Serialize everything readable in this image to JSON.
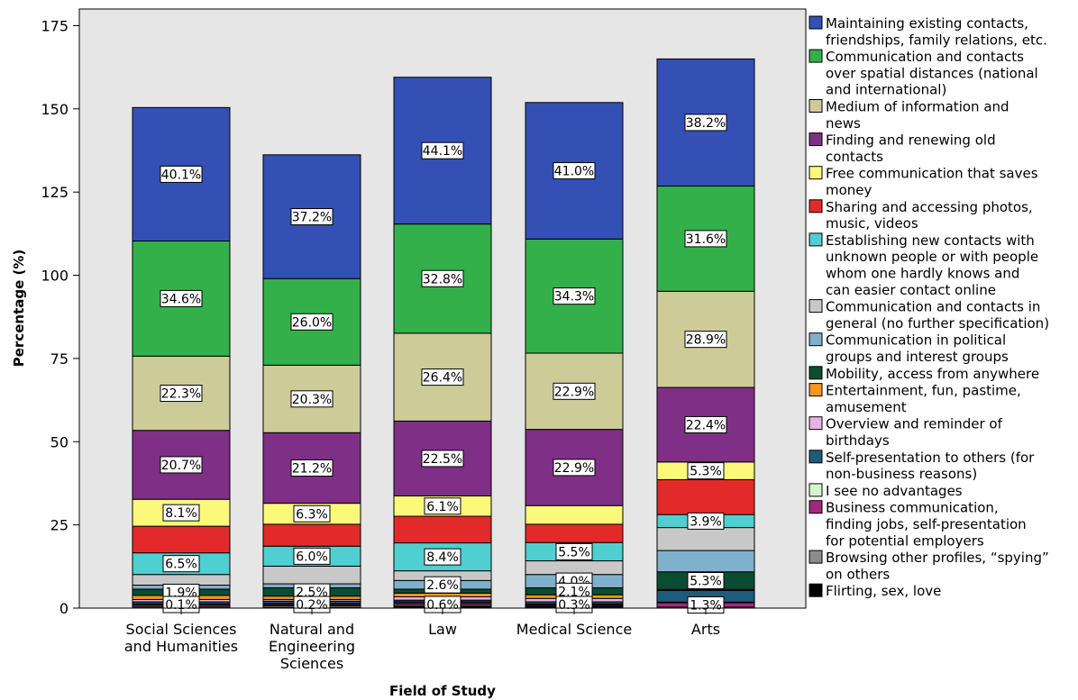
{
  "chart_data": {
    "type": "bar",
    "stacked": true,
    "xlabel": "Field of Study",
    "ylabel": "Percentage (%)",
    "ylim": [
      0,
      180
    ],
    "yticks": [
      0,
      25,
      50,
      75,
      100,
      125,
      150,
      175
    ],
    "grid": false,
    "legend_position": "right",
    "categories": [
      "Social Sciences and Humanities",
      "Natural and Engineering Sciences",
      "Law",
      "Medical Science",
      "Arts"
    ],
    "category_lines": [
      [
        "Social Sciences",
        "and Humanities"
      ],
      [
        "Natural and",
        "Engineering",
        "Sciences"
      ],
      [
        "Law"
      ],
      [
        "Medical Science"
      ],
      [
        "Arts"
      ]
    ],
    "series": [
      {
        "name": "Flirting, sex, love",
        "legend_lines": [
          "Flirting, sex, love"
        ],
        "color": "#000000",
        "values": [
          0.1,
          0.2,
          0.6,
          0.3,
          0.0
        ]
      },
      {
        "name": "Browsing other profiles, “spying” on others",
        "legend_lines": [
          "Browsing other profiles, “spying”",
          "on others"
        ],
        "color": "#8c8c8c",
        "values": [
          0.4,
          0.5,
          0.5,
          0.3,
          0.3
        ]
      },
      {
        "name": "Business communication, finding jobs, self-presentation for potential employers",
        "legend_lines": [
          "Business communication,",
          "finding jobs, self-presentation",
          "for potential employers"
        ],
        "color": "#a5287a",
        "values": [
          0.5,
          0.4,
          0.5,
          0.4,
          1.3
        ]
      },
      {
        "name": "I see no advantages",
        "legend_lines": [
          "I see no advantages"
        ],
        "color": "#d6f5cf",
        "values": [
          0.3,
          0.3,
          0.3,
          0.3,
          0.2
        ]
      },
      {
        "name": "Self-presentation to others (for non-business reasons)",
        "legend_lines": [
          "Self-presentation to others (for",
          "non-business reasons)"
        ],
        "color": "#1e5c7a",
        "values": [
          0.6,
          0.7,
          0.5,
          0.6,
          3.5
        ]
      },
      {
        "name": "Overview and reminder of birthdays",
        "legend_lines": [
          "Overview and reminder of",
          "birthdays"
        ],
        "color": "#e7b2e6",
        "values": [
          0.7,
          0.5,
          1.0,
          1.0,
          0.3
        ]
      },
      {
        "name": "Entertainment, fun, pastime, amusement",
        "legend_lines": [
          "Entertainment, fun, pastime,",
          "amusement"
        ],
        "color": "#f7961e",
        "values": [
          1.2,
          1.0,
          1.1,
          1.1,
          0.0
        ]
      },
      {
        "name": "Mobility, access from anywhere",
        "legend_lines": [
          "Mobility, access from anywhere"
        ],
        "color": "#0b4d33",
        "values": [
          1.9,
          2.5,
          1.2,
          2.1,
          5.3
        ]
      },
      {
        "name": "Communication in political groups and interest groups",
        "legend_lines": [
          "Communication in political",
          "groups and interest groups"
        ],
        "color": "#7fb0cc",
        "values": [
          1.2,
          1.2,
          2.6,
          4.0,
          6.4
        ]
      },
      {
        "name": "Communication and contacts in general (no further specification)",
        "legend_lines": [
          "Communication and contacts in",
          "general (no further specification)"
        ],
        "color": "#c8c8c8",
        "values": [
          3.2,
          5.3,
          2.9,
          4.1,
          6.9
        ]
      },
      {
        "name": "Establishing new contacts with unknown people or with people whom one hardly knows and can easier contact online",
        "legend_lines": [
          "Establishing new contacts with",
          "unknown people or with people",
          "whom one hardly knows and",
          "can easier contact online"
        ],
        "color": "#4fcfcf",
        "values": [
          6.5,
          6.0,
          8.4,
          5.5,
          3.9
        ]
      },
      {
        "name": "Sharing and accessing photos, music, videos",
        "legend_lines": [
          "Sharing and accessing photos,",
          "music, videos"
        ],
        "color": "#e32a2a",
        "values": [
          8.0,
          6.6,
          8.0,
          5.5,
          10.5
        ]
      },
      {
        "name": "Free communication that saves money",
        "legend_lines": [
          "Free communication that saves",
          "money"
        ],
        "color": "#fbf97a",
        "values": [
          8.1,
          6.3,
          6.1,
          5.6,
          5.3
        ]
      },
      {
        "name": "Finding and renewing old contacts",
        "legend_lines": [
          "Finding and renewing old",
          "contacts"
        ],
        "color": "#7f2f85",
        "values": [
          20.7,
          21.2,
          22.5,
          22.9,
          22.4
        ]
      },
      {
        "name": "Medium of information and news",
        "legend_lines": [
          "Medium of information and",
          "news"
        ],
        "color": "#cdcc98",
        "values": [
          22.3,
          20.3,
          26.4,
          22.9,
          28.9
        ]
      },
      {
        "name": "Communication and contacts over spatial distances (national and international)",
        "legend_lines": [
          "Communication and contacts",
          "over spatial distances (national",
          "and international)"
        ],
        "color": "#33b04a",
        "values": [
          34.6,
          26.0,
          32.8,
          34.3,
          31.6
        ]
      },
      {
        "name": "Maintaining existing contacts, friendships, family relations, etc.",
        "legend_lines": [
          "Maintaining existing contacts,",
          "friendships, family relations, etc."
        ],
        "color": "#3450b5",
        "values": [
          40.1,
          37.2,
          44.1,
          41.0,
          38.2
        ]
      }
    ],
    "data_labels": [
      {
        "category": 0,
        "series": 16,
        "text": "40.1%"
      },
      {
        "category": 0,
        "series": 15,
        "text": "34.6%"
      },
      {
        "category": 0,
        "series": 14,
        "text": "22.3%"
      },
      {
        "category": 0,
        "series": 13,
        "text": "20.7%"
      },
      {
        "category": 0,
        "series": 12,
        "text": "8.1%"
      },
      {
        "category": 0,
        "series": 10,
        "text": "6.5%"
      },
      {
        "category": 0,
        "series": 7,
        "text": "1.9%"
      },
      {
        "category": 0,
        "series": 0,
        "text": "0.1%"
      },
      {
        "category": 1,
        "series": 16,
        "text": "37.2%"
      },
      {
        "category": 1,
        "series": 15,
        "text": "26.0%"
      },
      {
        "category": 1,
        "series": 14,
        "text": "20.3%"
      },
      {
        "category": 1,
        "series": 13,
        "text": "21.2%"
      },
      {
        "category": 1,
        "series": 12,
        "text": "6.3%"
      },
      {
        "category": 1,
        "series": 10,
        "text": "6.0%"
      },
      {
        "category": 1,
        "series": 7,
        "text": "2.5%"
      },
      {
        "category": 1,
        "series": 0,
        "text": "0.2%"
      },
      {
        "category": 2,
        "series": 16,
        "text": "44.1%"
      },
      {
        "category": 2,
        "series": 15,
        "text": "32.8%"
      },
      {
        "category": 2,
        "series": 14,
        "text": "26.4%"
      },
      {
        "category": 2,
        "series": 13,
        "text": "22.5%"
      },
      {
        "category": 2,
        "series": 12,
        "text": "6.1%"
      },
      {
        "category": 2,
        "series": 10,
        "text": "8.4%"
      },
      {
        "category": 2,
        "series": 8,
        "text": "2.6%"
      },
      {
        "category": 2,
        "series": 0,
        "text": "0.6%"
      },
      {
        "category": 3,
        "series": 16,
        "text": "41.0%"
      },
      {
        "category": 3,
        "series": 15,
        "text": "34.3%"
      },
      {
        "category": 3,
        "series": 14,
        "text": "22.9%"
      },
      {
        "category": 3,
        "series": 13,
        "text": "22.9%"
      },
      {
        "category": 3,
        "series": 10,
        "text": "5.5%"
      },
      {
        "category": 3,
        "series": 8,
        "text": "4.0%"
      },
      {
        "category": 3,
        "series": 7,
        "text": "2.1%"
      },
      {
        "category": 3,
        "series": 0,
        "text": "0.3%"
      },
      {
        "category": 4,
        "series": 16,
        "text": "38.2%"
      },
      {
        "category": 4,
        "series": 15,
        "text": "31.6%"
      },
      {
        "category": 4,
        "series": 14,
        "text": "28.9%"
      },
      {
        "category": 4,
        "series": 13,
        "text": "22.4%"
      },
      {
        "category": 4,
        "series": 12,
        "text": "5.3%"
      },
      {
        "category": 4,
        "series": 10,
        "text": "3.9%"
      },
      {
        "category": 4,
        "series": 7,
        "text": "5.3%"
      },
      {
        "category": 4,
        "series": 2,
        "text": "1.3%"
      }
    ],
    "colors": {
      "plot_background": "#e6e6e6",
      "label_background": "#ffffff"
    }
  }
}
